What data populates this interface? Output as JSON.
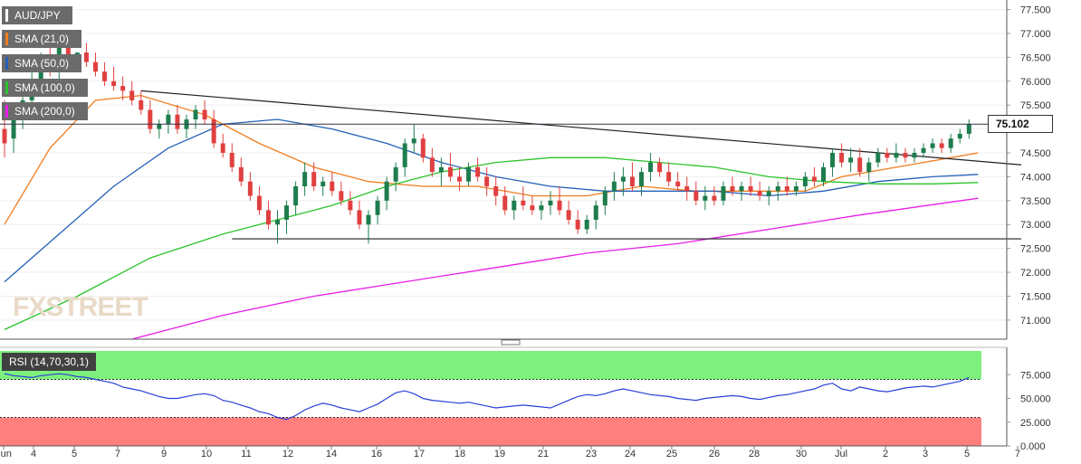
{
  "chart_data": {
    "type": "candlestick",
    "symbol": "AUD/JPY",
    "legend": [
      {
        "label": "AUD/JPY",
        "color": "#6b6b6b"
      },
      {
        "label": "SMA (21,0)",
        "color": "#f07d1e"
      },
      {
        "label": "SMA (50,0)",
        "color": "#2560b8"
      },
      {
        "label": "SMA (100,0)",
        "color": "#2bc42b"
      },
      {
        "label": "SMA (200,0)",
        "color": "#e81ee8"
      }
    ],
    "current_price": "75.102",
    "price_axis": {
      "ylim": [
        70.6,
        77.7
      ],
      "ticks": [
        "77.500",
        "77.000",
        "76.500",
        "76.000",
        "75.500",
        "75.000",
        "74.500",
        "74.000",
        "73.500",
        "73.000",
        "72.500",
        "72.000",
        "71.500",
        "71.000"
      ]
    },
    "x_axis": {
      "labels": [
        "Jun",
        "4",
        "5",
        "7",
        "9",
        "10",
        "11",
        "12",
        "14",
        "16",
        "17",
        "18",
        "19",
        "21",
        "23",
        "24",
        "25",
        "26",
        "28",
        "30",
        "Jul",
        "2",
        "3",
        "5",
        "7"
      ],
      "label_positions": [
        0,
        9,
        19,
        31,
        43,
        54,
        66,
        78,
        89,
        101,
        113,
        125,
        137,
        149,
        161,
        172,
        184,
        196,
        208,
        219,
        230,
        242,
        254,
        266,
        278
      ]
    },
    "candles": [
      [
        75.0,
        75.6,
        74.4,
        74.7
      ],
      [
        74.8,
        75.3,
        74.5,
        75.2
      ],
      [
        75.2,
        75.9,
        75.0,
        75.6
      ],
      [
        75.6,
        76.3,
        75.4,
        75.9
      ],
      [
        75.9,
        76.6,
        75.7,
        76.5
      ],
      [
        76.5,
        76.7,
        76.1,
        76.2
      ],
      [
        76.2,
        76.8,
        76.0,
        76.7
      ],
      [
        76.7,
        76.8,
        76.4,
        76.5
      ],
      [
        76.4,
        76.6,
        76.3,
        76.6
      ],
      [
        76.6,
        76.8,
        76.3,
        76.4
      ],
      [
        76.4,
        76.6,
        76.1,
        76.2
      ],
      [
        76.2,
        76.4,
        75.9,
        76.0
      ],
      [
        76.0,
        76.3,
        75.8,
        75.9
      ],
      [
        75.9,
        76.1,
        75.6,
        75.8
      ],
      [
        75.8,
        76.0,
        75.5,
        75.6
      ],
      [
        75.6,
        75.8,
        75.3,
        75.4
      ],
      [
        75.4,
        75.6,
        74.9,
        75.0
      ],
      [
        75.0,
        75.2,
        74.8,
        75.1
      ],
      [
        75.1,
        75.4,
        74.9,
        75.3
      ],
      [
        75.3,
        75.5,
        74.9,
        75.0
      ],
      [
        75.0,
        75.3,
        74.8,
        75.2
      ],
      [
        75.2,
        75.5,
        75.0,
        75.4
      ],
      [
        75.4,
        75.6,
        75.1,
        75.2
      ],
      [
        75.2,
        75.4,
        74.6,
        74.7
      ],
      [
        74.7,
        74.9,
        74.4,
        74.5
      ],
      [
        74.5,
        74.7,
        74.1,
        74.2
      ],
      [
        74.2,
        74.4,
        73.8,
        73.9
      ],
      [
        73.9,
        74.1,
        73.5,
        73.6
      ],
      [
        73.6,
        73.8,
        73.2,
        73.3
      ],
      [
        73.3,
        73.5,
        72.9,
        73.0
      ],
      [
        73.0,
        73.3,
        72.6,
        73.1
      ],
      [
        73.1,
        73.5,
        72.8,
        73.4
      ],
      [
        73.4,
        73.9,
        73.2,
        73.8
      ],
      [
        73.8,
        74.3,
        73.6,
        74.1
      ],
      [
        74.1,
        74.3,
        73.7,
        73.8
      ],
      [
        73.8,
        74.0,
        73.6,
        73.9
      ],
      [
        73.9,
        74.1,
        73.6,
        73.7
      ],
      [
        73.7,
        73.9,
        73.4,
        73.5
      ],
      [
        73.5,
        73.7,
        73.2,
        73.3
      ],
      [
        73.3,
        73.5,
        72.9,
        73.0
      ],
      [
        73.0,
        73.3,
        72.6,
        73.2
      ],
      [
        73.2,
        73.6,
        73.0,
        73.5
      ],
      [
        73.5,
        74.0,
        73.3,
        73.9
      ],
      [
        73.9,
        74.3,
        73.7,
        74.2
      ],
      [
        74.2,
        74.8,
        74.0,
        74.7
      ],
      [
        74.7,
        75.1,
        74.5,
        74.8
      ],
      [
        74.8,
        74.9,
        74.3,
        74.4
      ],
      [
        74.4,
        74.6,
        74.0,
        74.1
      ],
      [
        74.1,
        74.4,
        73.8,
        74.2
      ],
      [
        74.2,
        74.5,
        73.9,
        74.0
      ],
      [
        74.0,
        74.2,
        73.7,
        73.9
      ],
      [
        73.9,
        74.3,
        73.8,
        74.2
      ],
      [
        74.2,
        74.4,
        73.9,
        74.0
      ],
      [
        74.0,
        74.2,
        73.6,
        73.8
      ],
      [
        73.8,
        74.0,
        73.4,
        73.6
      ],
      [
        73.6,
        73.8,
        73.2,
        73.3
      ],
      [
        73.3,
        73.6,
        73.1,
        73.5
      ],
      [
        73.5,
        73.8,
        73.3,
        73.4
      ],
      [
        73.4,
        73.6,
        73.2,
        73.3
      ],
      [
        73.3,
        73.5,
        73.1,
        73.4
      ],
      [
        73.4,
        73.7,
        73.2,
        73.5
      ],
      [
        73.5,
        73.8,
        73.2,
        73.3
      ],
      [
        73.3,
        73.5,
        73.0,
        73.1
      ],
      [
        73.1,
        73.3,
        72.8,
        72.9
      ],
      [
        72.9,
        73.2,
        72.8,
        73.1
      ],
      [
        73.1,
        73.5,
        72.9,
        73.4
      ],
      [
        73.4,
        73.8,
        73.2,
        73.7
      ],
      [
        73.7,
        74.1,
        73.5,
        73.9
      ],
      [
        73.9,
        74.2,
        73.6,
        74.0
      ],
      [
        74.0,
        74.3,
        73.7,
        73.8
      ],
      [
        73.8,
        74.2,
        73.6,
        74.1
      ],
      [
        74.1,
        74.5,
        73.9,
        74.3
      ],
      [
        74.3,
        74.4,
        74.0,
        74.1
      ],
      [
        74.1,
        74.3,
        73.8,
        73.9
      ],
      [
        73.9,
        74.1,
        73.7,
        73.8
      ],
      [
        73.8,
        74.0,
        73.5,
        73.7
      ],
      [
        73.7,
        73.9,
        73.4,
        73.5
      ],
      [
        73.5,
        73.8,
        73.3,
        73.6
      ],
      [
        73.6,
        73.8,
        73.4,
        73.5
      ],
      [
        73.5,
        73.9,
        73.4,
        73.8
      ],
      [
        73.8,
        74.0,
        73.6,
        73.7
      ],
      [
        73.7,
        73.9,
        73.5,
        73.8
      ],
      [
        73.8,
        74.0,
        73.6,
        73.7
      ],
      [
        73.7,
        73.9,
        73.5,
        73.6
      ],
      [
        73.6,
        73.8,
        73.4,
        73.7
      ],
      [
        73.7,
        73.9,
        73.5,
        73.8
      ],
      [
        73.8,
        74.0,
        73.6,
        73.7
      ],
      [
        73.7,
        73.9,
        73.6,
        73.8
      ],
      [
        73.8,
        74.1,
        73.7,
        74.0
      ],
      [
        74.0,
        74.2,
        73.8,
        73.9
      ],
      [
        73.9,
        74.3,
        73.8,
        74.2
      ],
      [
        74.2,
        74.6,
        74.0,
        74.5
      ],
      [
        74.5,
        74.7,
        74.2,
        74.3
      ],
      [
        74.3,
        74.6,
        74.1,
        74.4
      ],
      [
        74.4,
        74.6,
        74.0,
        74.1
      ],
      [
        74.1,
        74.4,
        73.9,
        74.3
      ],
      [
        74.3,
        74.6,
        74.2,
        74.5
      ],
      [
        74.5,
        74.6,
        74.3,
        74.4
      ],
      [
        74.4,
        74.7,
        74.3,
        74.5
      ],
      [
        74.5,
        74.6,
        74.3,
        74.4
      ],
      [
        74.4,
        74.6,
        74.3,
        74.5
      ],
      [
        74.5,
        74.7,
        74.4,
        74.6
      ],
      [
        74.6,
        74.8,
        74.5,
        74.7
      ],
      [
        74.7,
        74.8,
        74.5,
        74.6
      ],
      [
        74.6,
        74.9,
        74.5,
        74.8
      ],
      [
        74.8,
        75.0,
        74.7,
        74.9
      ],
      [
        74.9,
        75.2,
        74.8,
        75.1
      ]
    ],
    "sma": [
      {
        "label": "SMA (21,0)",
        "color": "#f07d1e",
        "points": [
          [
            0,
            73.0
          ],
          [
            5,
            74.6
          ],
          [
            10,
            75.6
          ],
          [
            15,
            75.7
          ],
          [
            22,
            75.3
          ],
          [
            28,
            74.7
          ],
          [
            34,
            74.2
          ],
          [
            40,
            73.9
          ],
          [
            46,
            73.8
          ],
          [
            52,
            73.8
          ],
          [
            58,
            73.6
          ],
          [
            64,
            73.6
          ],
          [
            70,
            73.8
          ],
          [
            76,
            73.7
          ],
          [
            82,
            73.7
          ],
          [
            88,
            73.7
          ],
          [
            92,
            74.0
          ],
          [
            98,
            74.2
          ],
          [
            104,
            74.4
          ],
          [
            107,
            74.5
          ]
        ]
      },
      {
        "label": "SMA (50,0)",
        "color": "#2560b8",
        "points": [
          [
            0,
            71.8
          ],
          [
            6,
            72.8
          ],
          [
            12,
            73.8
          ],
          [
            18,
            74.6
          ],
          [
            24,
            75.1
          ],
          [
            30,
            75.2
          ],
          [
            36,
            75.0
          ],
          [
            42,
            74.7
          ],
          [
            48,
            74.3
          ],
          [
            54,
            74.0
          ],
          [
            60,
            73.8
          ],
          [
            66,
            73.7
          ],
          [
            72,
            73.7
          ],
          [
            78,
            73.7
          ],
          [
            84,
            73.6
          ],
          [
            90,
            73.7
          ],
          [
            96,
            73.9
          ],
          [
            102,
            74.0
          ],
          [
            107,
            74.05
          ]
        ]
      },
      {
        "label": "SMA (100,0)",
        "color": "#2bc42b",
        "points": [
          [
            0,
            70.8
          ],
          [
            8,
            71.5
          ],
          [
            16,
            72.3
          ],
          [
            24,
            72.8
          ],
          [
            30,
            73.1
          ],
          [
            36,
            73.4
          ],
          [
            42,
            73.8
          ],
          [
            48,
            74.1
          ],
          [
            54,
            74.3
          ],
          [
            60,
            74.4
          ],
          [
            66,
            74.4
          ],
          [
            72,
            74.3
          ],
          [
            78,
            74.2
          ],
          [
            84,
            74.0
          ],
          [
            90,
            73.9
          ],
          [
            96,
            73.85
          ],
          [
            102,
            73.85
          ],
          [
            107,
            73.88
          ]
        ]
      },
      {
        "label": "SMA (200,0)",
        "color": "#e81ee8",
        "points": [
          [
            14,
            70.6
          ],
          [
            24,
            71.1
          ],
          [
            34,
            71.5
          ],
          [
            44,
            71.8
          ],
          [
            54,
            72.1
          ],
          [
            64,
            72.4
          ],
          [
            74,
            72.6
          ],
          [
            84,
            72.9
          ],
          [
            94,
            73.2
          ],
          [
            107,
            73.55
          ]
        ]
      }
    ],
    "trendlines": [
      {
        "name": "descending-resistance",
        "points": [
          [
            15,
            75.8
          ],
          [
            112,
            74.25
          ]
        ]
      },
      {
        "name": "horizontal-support",
        "points": [
          [
            25,
            72.7
          ],
          [
            112,
            72.7
          ]
        ]
      }
    ],
    "rsi": {
      "label": "RSI (14,70,30,1)",
      "ticks": [
        "75.000",
        "50.000",
        "25.000",
        "0.000"
      ],
      "overbought": 70,
      "oversold": 30,
      "values": [
        76,
        74,
        73,
        72,
        74,
        75,
        76,
        75,
        73,
        72,
        70,
        68,
        66,
        62,
        60,
        58,
        55,
        52,
        50,
        50,
        52,
        54,
        55,
        53,
        48,
        46,
        43,
        40,
        36,
        34,
        30,
        28,
        32,
        38,
        42,
        45,
        43,
        40,
        38,
        36,
        40,
        44,
        50,
        56,
        58,
        55,
        50,
        48,
        47,
        46,
        45,
        46,
        44,
        42,
        40,
        41,
        42,
        43,
        42,
        41,
        40,
        44,
        48,
        52,
        54,
        53,
        55,
        58,
        60,
        58,
        56,
        54,
        53,
        52,
        50,
        49,
        48,
        50,
        51,
        52,
        53,
        52,
        50,
        49,
        51,
        53,
        54,
        56,
        58,
        60,
        64,
        66,
        60,
        58,
        62,
        60,
        58,
        57,
        59,
        61,
        62,
        63,
        62,
        64,
        66,
        68,
        72
      ]
    },
    "watermark": "FXSTREET"
  }
}
